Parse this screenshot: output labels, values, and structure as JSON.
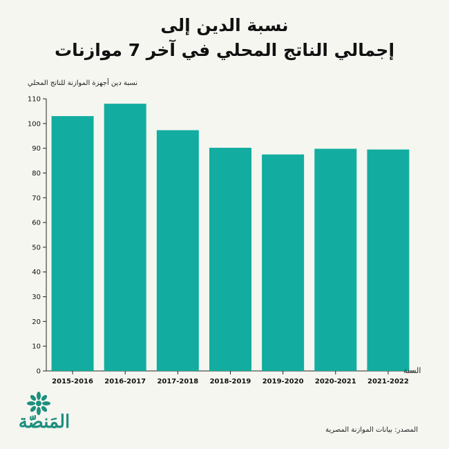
{
  "brand": {
    "name": "المَنصّة",
    "icon": "flower-logo-icon",
    "color": "#1e8f7f"
  },
  "chart_data": {
    "type": "bar",
    "title": [
      "نسبة الدين إلى",
      "إجمالي الناتج المحلي في آخر 7 موازنات"
    ],
    "ylabel": "نسبة دين أجهزة الموازنة للناتج المحلي",
    "xlabel": "السنة",
    "source": "المصدر: بيانات الموازنة المصرية",
    "categories": [
      "2015-2016",
      "2016-2017",
      "2017-2018",
      "2018-2019",
      "2019-2020",
      "2020-2021",
      "2021-2022"
    ],
    "values": [
      103,
      108,
      97.3,
      90.2,
      87.5,
      89.8,
      89.5
    ],
    "ylim": [
      0,
      110
    ],
    "yticks": [
      0,
      10,
      20,
      30,
      40,
      50,
      60,
      70,
      80,
      90,
      100,
      110
    ],
    "bar_color": "#12ada0",
    "grid": false,
    "legend": "none"
  }
}
